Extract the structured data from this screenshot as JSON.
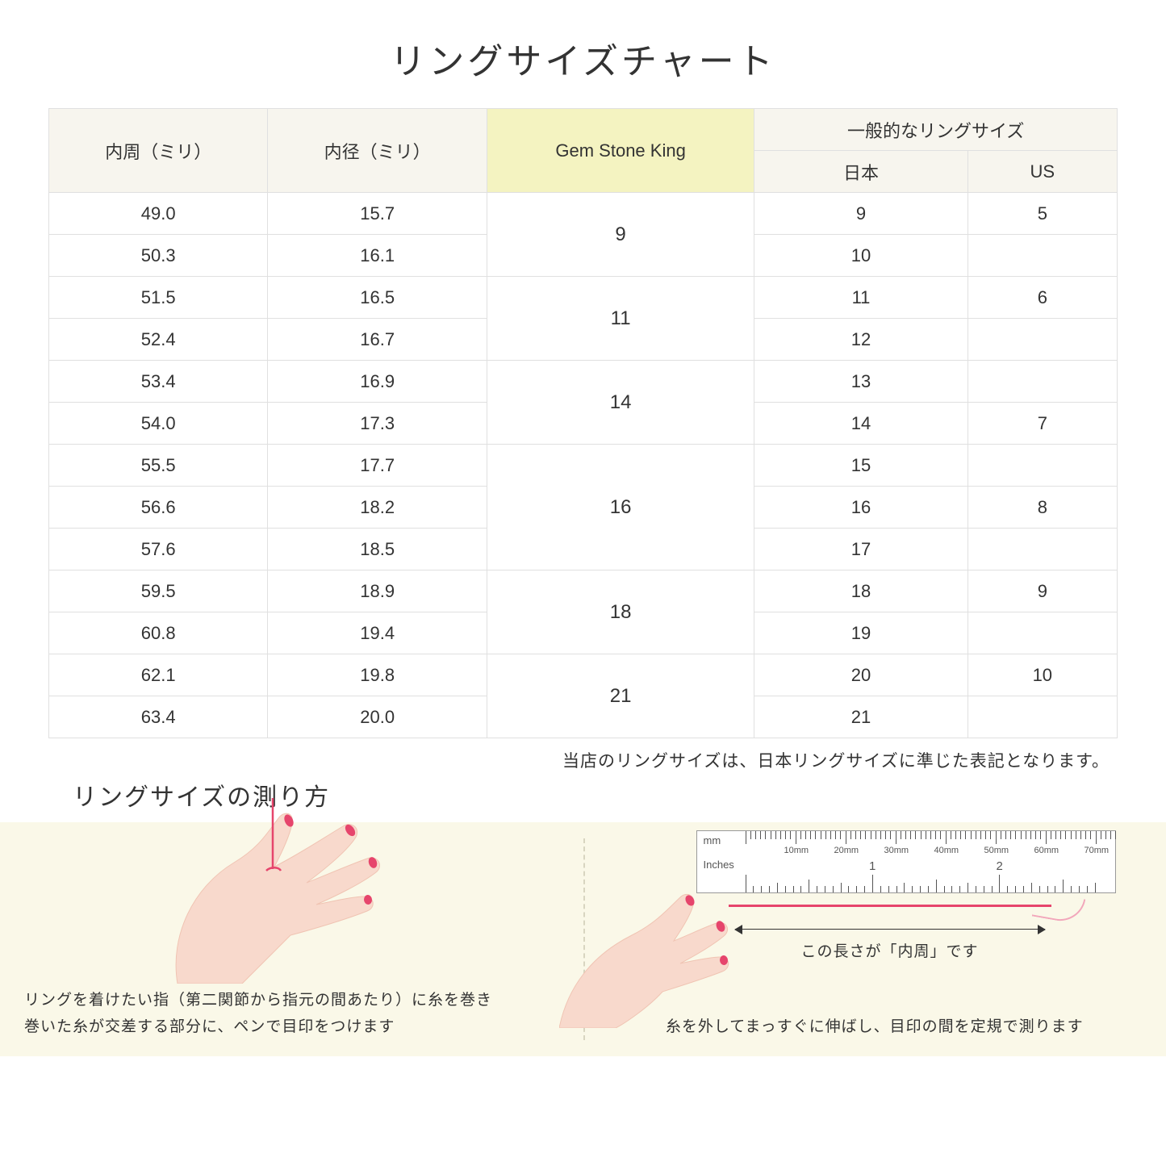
{
  "title": "リングサイズチャート",
  "table": {
    "headers": {
      "circumference": "内周（ミリ）",
      "diameter": "内径（ミリ）",
      "gsk": "Gem Stone King",
      "general": "一般的なリングサイズ",
      "japan": "日本",
      "us": "US"
    },
    "groups": [
      {
        "gsk": "9",
        "rows": [
          {
            "c": "49.0",
            "d": "15.7",
            "jp": "9",
            "us": "5"
          },
          {
            "c": "50.3",
            "d": "16.1",
            "jp": "10",
            "us": ""
          }
        ]
      },
      {
        "gsk": "11",
        "rows": [
          {
            "c": "51.5",
            "d": "16.5",
            "jp": "11",
            "us": "6"
          },
          {
            "c": "52.4",
            "d": "16.7",
            "jp": "12",
            "us": ""
          }
        ]
      },
      {
        "gsk": "14",
        "rows": [
          {
            "c": "53.4",
            "d": "16.9",
            "jp": "13",
            "us": ""
          },
          {
            "c": "54.0",
            "d": "17.3",
            "jp": "14",
            "us": "7"
          }
        ]
      },
      {
        "gsk": "16",
        "rows": [
          {
            "c": "55.5",
            "d": "17.7",
            "jp": "15",
            "us": ""
          },
          {
            "c": "56.6",
            "d": "18.2",
            "jp": "16",
            "us": "8"
          },
          {
            "c": "57.6",
            "d": "18.5",
            "jp": "17",
            "us": ""
          }
        ]
      },
      {
        "gsk": "18",
        "rows": [
          {
            "c": "59.5",
            "d": "18.9",
            "jp": "18",
            "us": "9"
          },
          {
            "c": "60.8",
            "d": "19.4",
            "jp": "19",
            "us": ""
          }
        ]
      },
      {
        "gsk": "21",
        "rows": [
          {
            "c": "62.1",
            "d": "19.8",
            "jp": "20",
            "us": "10"
          },
          {
            "c": "63.4",
            "d": "20.0",
            "jp": "21",
            "us": ""
          }
        ]
      }
    ]
  },
  "note": "当店のリングサイズは、日本リングサイズに準じた表記となります。",
  "howto": {
    "title": "リングサイズの測り方",
    "left_caption_l1": "リングを着けたい指（第二関節から指元の間あたり）に糸を巻き",
    "left_caption_l2": "巻いた糸が交差する部分に、ペンで目印をつけます",
    "right_arrow_caption": "この長さが「内周」です",
    "right_caption": "糸を外してまっすぐに伸ばし、目印の間を定規で測ります",
    "ruler": {
      "mm_label": "mm",
      "in_label": "Inches",
      "mm_marks": [
        "10mm",
        "20mm",
        "30mm",
        "40mm",
        "50mm",
        "60mm",
        "70mm"
      ],
      "in_marks": [
        "1",
        "2"
      ]
    }
  },
  "colors": {
    "header_bg": "#f7f5ee",
    "highlight_bg": "#f4f3c1",
    "howto_bg": "#faf8e8",
    "skin": "#f8d9cc",
    "skin_shadow": "#f0c4b3",
    "nail": "#e6456c",
    "thread": "#e6456c"
  }
}
